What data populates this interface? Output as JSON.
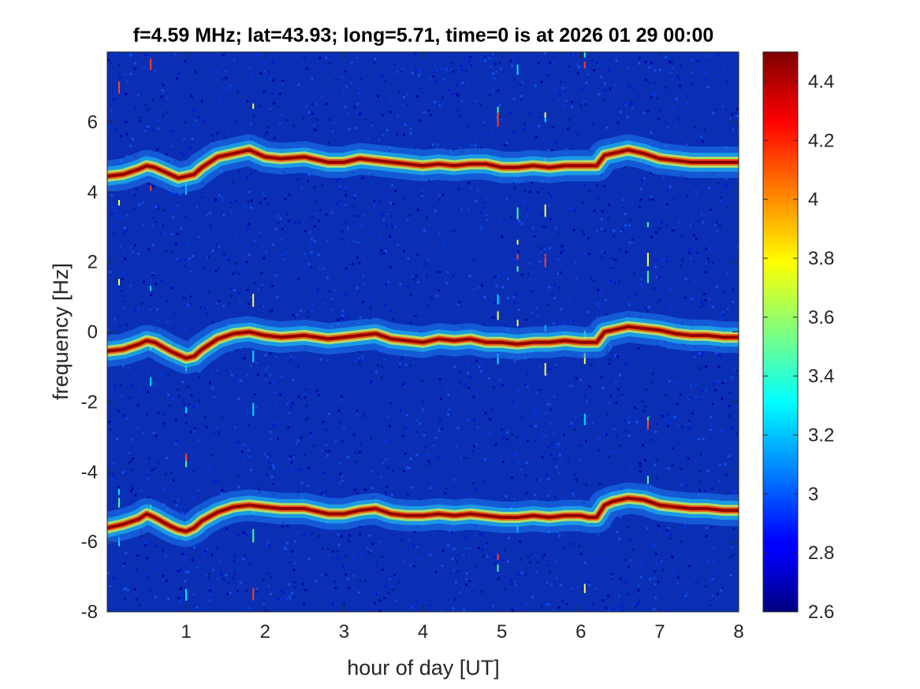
{
  "chart_data": {
    "type": "heatmap",
    "title": "f=4.59 MHz;  lat=43.93; long=5.71, time=0 is at 2026 01 29 00:00",
    "xlabel": "hour of day [UT]",
    "ylabel": "frequency [Hz]",
    "xlim": [
      0,
      8
    ],
    "ylim": [
      -8,
      8
    ],
    "x_ticks": [
      1,
      2,
      3,
      4,
      5,
      6,
      7,
      8
    ],
    "y_ticks": [
      -8,
      -6,
      -4,
      -2,
      0,
      2,
      4,
      6
    ],
    "colorbar": {
      "clim": [
        2.6,
        4.5
      ],
      "ticks": [
        2.6,
        2.8,
        3,
        3.2,
        3.4,
        3.6,
        3.8,
        4,
        4.2,
        4.4
      ],
      "colormap": "jet"
    },
    "traces": [
      {
        "hours": [
          0,
          0.2,
          0.4,
          0.5,
          0.6,
          0.8,
          0.9,
          1.0,
          1.1,
          1.2,
          1.4,
          1.6,
          1.8,
          2.0,
          2.2,
          2.5,
          2.8,
          3.0,
          3.2,
          3.4,
          3.6,
          3.8,
          4.0,
          4.2,
          4.4,
          4.6,
          4.8,
          5.0,
          5.2,
          5.4,
          5.6,
          5.8,
          6.0,
          6.1,
          6.2,
          6.3,
          6.4,
          6.6,
          6.8,
          7.0,
          7.2,
          7.4,
          7.6,
          7.8,
          8.0
        ],
        "freq_hz": [
          -0.55,
          -0.5,
          -0.35,
          -0.25,
          -0.3,
          -0.55,
          -0.65,
          -0.75,
          -0.7,
          -0.5,
          -0.2,
          -0.05,
          0.0,
          -0.1,
          -0.15,
          -0.1,
          -0.2,
          -0.15,
          -0.1,
          -0.05,
          -0.2,
          -0.25,
          -0.3,
          -0.2,
          -0.25,
          -0.2,
          -0.3,
          -0.3,
          -0.35,
          -0.3,
          -0.3,
          -0.25,
          -0.3,
          -0.3,
          -0.3,
          0.0,
          0.05,
          0.15,
          0.1,
          0.05,
          -0.05,
          -0.1,
          -0.1,
          -0.15,
          -0.15
        ]
      },
      {
        "hours": [
          0,
          0.2,
          0.4,
          0.5,
          0.6,
          0.8,
          0.9,
          1.0,
          1.1,
          1.2,
          1.4,
          1.6,
          1.8,
          2.0,
          2.2,
          2.5,
          2.8,
          3.0,
          3.2,
          3.4,
          3.6,
          3.8,
          4.0,
          4.2,
          4.4,
          4.6,
          4.8,
          5.0,
          5.2,
          5.4,
          5.6,
          5.8,
          6.0,
          6.1,
          6.2,
          6.3,
          6.4,
          6.6,
          6.8,
          7.0,
          7.2,
          7.4,
          7.6,
          7.8,
          8.0
        ],
        "freq_hz": [
          4.45,
          4.5,
          4.65,
          4.75,
          4.7,
          4.5,
          4.4,
          4.45,
          4.5,
          4.7,
          5.0,
          5.1,
          5.2,
          5.0,
          4.95,
          5.0,
          4.85,
          4.85,
          4.95,
          4.9,
          4.85,
          4.8,
          4.75,
          4.8,
          4.75,
          4.8,
          4.8,
          4.7,
          4.7,
          4.75,
          4.7,
          4.75,
          4.75,
          4.75,
          4.75,
          5.05,
          5.1,
          5.2,
          5.1,
          4.95,
          4.9,
          4.85,
          4.85,
          4.85,
          4.85
        ]
      },
      {
        "hours": [
          0,
          0.2,
          0.4,
          0.5,
          0.6,
          0.8,
          0.9,
          1.0,
          1.1,
          1.2,
          1.4,
          1.6,
          1.8,
          2.0,
          2.2,
          2.5,
          2.8,
          3.0,
          3.2,
          3.4,
          3.6,
          3.8,
          4.0,
          4.2,
          4.4,
          4.6,
          4.8,
          5.0,
          5.2,
          5.4,
          5.6,
          5.8,
          6.0,
          6.1,
          6.2,
          6.3,
          6.4,
          6.6,
          6.8,
          7.0,
          7.2,
          7.4,
          7.6,
          7.8,
          8.0
        ],
        "freq_hz": [
          -5.6,
          -5.5,
          -5.35,
          -5.2,
          -5.3,
          -5.55,
          -5.65,
          -5.7,
          -5.6,
          -5.4,
          -5.15,
          -5.0,
          -4.95,
          -5.0,
          -5.05,
          -5.05,
          -5.2,
          -5.2,
          -5.1,
          -5.05,
          -5.2,
          -5.25,
          -5.25,
          -5.2,
          -5.25,
          -5.2,
          -5.25,
          -5.3,
          -5.3,
          -5.25,
          -5.3,
          -5.25,
          -5.25,
          -5.3,
          -5.3,
          -4.95,
          -4.85,
          -4.75,
          -4.8,
          -4.95,
          -5.0,
          -5.05,
          -5.05,
          -5.1,
          -5.1
        ]
      }
    ],
    "vertical_artifact_hours": [
      0.15,
      0.55,
      1.0,
      1.85,
      4.95,
      5.2,
      5.55,
      6.05,
      6.85
    ]
  }
}
